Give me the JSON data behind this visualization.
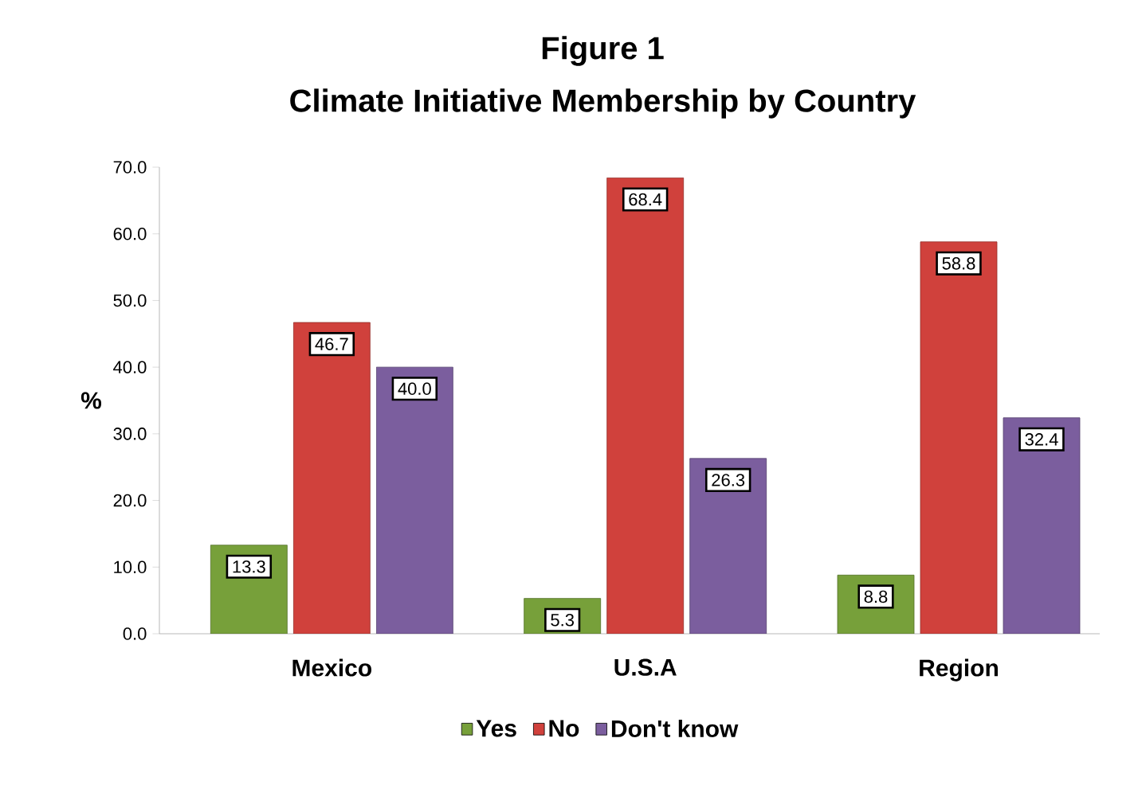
{
  "chart_data": {
    "type": "bar",
    "title": "Figure 1",
    "subtitle": "Climate Initiative Membership by Country",
    "ylabel": "%",
    "categories": [
      "Mexico",
      "U.S.A",
      "Region"
    ],
    "series": [
      {
        "name": "Yes",
        "color": "#77a03a",
        "values": [
          13.3,
          5.3,
          8.8
        ],
        "value_labels": [
          "13.3",
          "5.3",
          "8.8"
        ]
      },
      {
        "name": "No",
        "color": "#d0413c",
        "values": [
          46.7,
          68.4,
          58.8
        ],
        "value_labels": [
          "46.7",
          "68.4",
          "58.8"
        ]
      },
      {
        "name": "Don't know",
        "color": "#7b5e9e",
        "values": [
          40.0,
          26.3,
          32.4
        ],
        "value_labels": [
          "40.0",
          "26.3",
          "32.4"
        ]
      }
    ],
    "ylim": [
      0,
      70
    ],
    "yticks": [
      {
        "value": 0,
        "label": "0.0"
      },
      {
        "value": 10,
        "label": "10.0"
      },
      {
        "value": 20,
        "label": "20.0"
      },
      {
        "value": 30,
        "label": "30.0"
      },
      {
        "value": 40,
        "label": "40.0"
      },
      {
        "value": 50,
        "label": "50.0"
      },
      {
        "value": 60,
        "label": "60.0"
      },
      {
        "value": 70,
        "label": "70.0"
      }
    ],
    "legend": "bottom",
    "grid": false
  }
}
